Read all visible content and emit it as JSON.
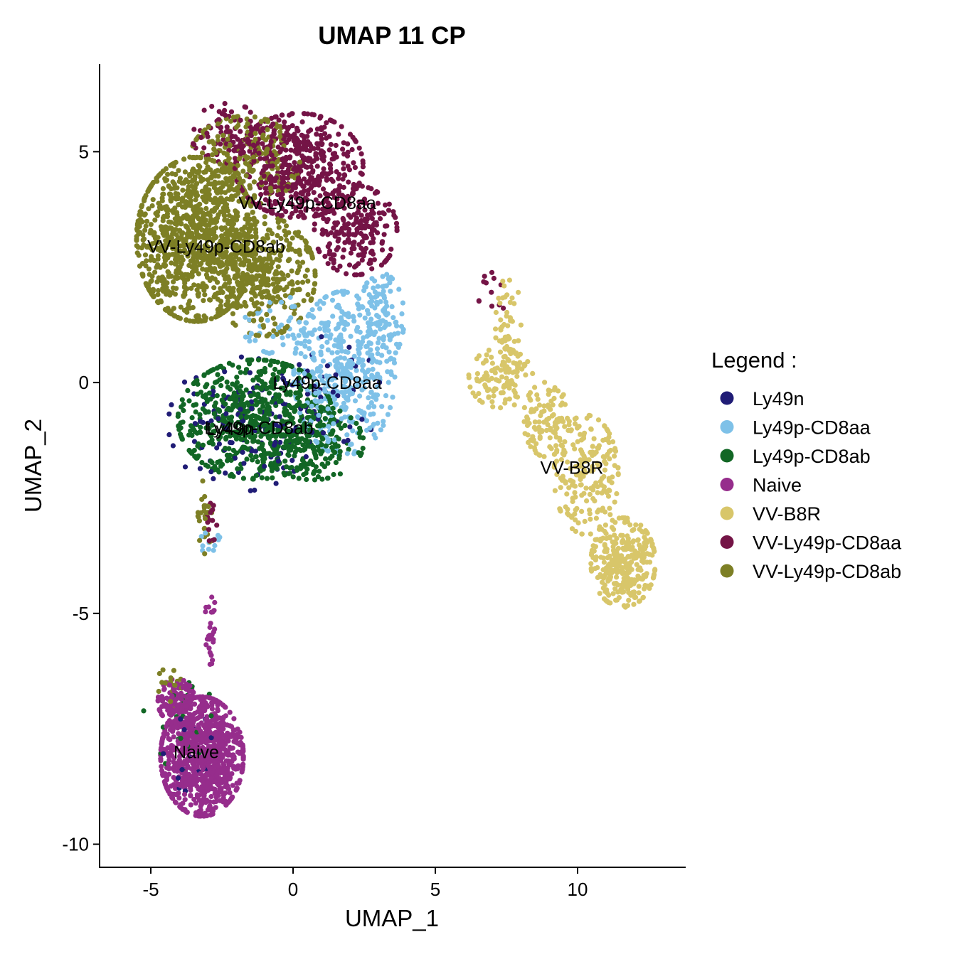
{
  "chart_data": {
    "type": "scatter",
    "title": "UMAP 11 CP",
    "xlabel": "UMAP_1",
    "ylabel": "UMAP_2",
    "xlim": [
      -6.8,
      13.8
    ],
    "ylim": [
      -10.5,
      6.9
    ],
    "xticks": [
      -5,
      0,
      5,
      10
    ],
    "yticks": [
      -10,
      -5,
      0,
      5
    ],
    "xtick_labels": [
      "-5",
      "0",
      "5",
      "10"
    ],
    "ytick_labels": [
      "-10",
      "-5",
      "0",
      "5"
    ],
    "grid": false,
    "legend_position": "right",
    "legend_title": "Legend :",
    "series": [
      {
        "name": "Ly49n",
        "color": "#201C76",
        "clusters": [
          {
            "cx": -1.8,
            "cy": -0.9,
            "sx": 1.6,
            "sy": 0.9,
            "n": 110
          },
          {
            "cx": 1.0,
            "cy": -0.3,
            "sx": 1.3,
            "sy": 0.8,
            "n": 50
          },
          {
            "cx": -3.6,
            "cy": -7.9,
            "sx": 0.6,
            "sy": 0.6,
            "n": 14
          }
        ]
      },
      {
        "name": "Ly49p-CD8aa",
        "color": "#7EC1E8",
        "clusters": [
          {
            "cx": 1.8,
            "cy": 0.2,
            "sx": 1.1,
            "sy": 1.1,
            "n": 380
          },
          {
            "cx": 3.1,
            "cy": 1.4,
            "sx": 0.5,
            "sy": 0.6,
            "n": 110
          },
          {
            "cx": 0.0,
            "cy": 1.2,
            "sx": 1.1,
            "sy": 0.4,
            "n": 60
          },
          {
            "cx": -2.9,
            "cy": -3.4,
            "sx": 0.2,
            "sy": 0.3,
            "n": 12
          }
        ]
      },
      {
        "name": "Ly49p-CD8ab",
        "color": "#126725",
        "clusters": [
          {
            "cx": -1.3,
            "cy": -0.8,
            "sx": 1.7,
            "sy": 0.8,
            "n": 620
          },
          {
            "cx": 0.7,
            "cy": -1.3,
            "sx": 1.1,
            "sy": 0.5,
            "n": 180
          },
          {
            "cx": -4.0,
            "cy": -7.4,
            "sx": 0.8,
            "sy": 0.7,
            "n": 28
          }
        ]
      },
      {
        "name": "Naive",
        "color": "#962D8C",
        "clusters": [
          {
            "cx": -3.2,
            "cy": -8.1,
            "sx": 0.9,
            "sy": 0.8,
            "n": 920
          },
          {
            "cx": -4.1,
            "cy": -6.9,
            "sx": 0.4,
            "sy": 0.3,
            "n": 120
          },
          {
            "cx": -2.9,
            "cy": -5.3,
            "sx": 0.12,
            "sy": 0.5,
            "n": 28
          }
        ]
      },
      {
        "name": "VV-B8R",
        "color": "#D8C66A",
        "clusters": [
          {
            "cx": 11.6,
            "cy": -3.9,
            "sx": 0.7,
            "sy": 0.6,
            "n": 320
          },
          {
            "cx": 10.3,
            "cy": -2.0,
            "sx": 0.7,
            "sy": 0.8,
            "n": 190
          },
          {
            "cx": 8.9,
            "cy": -0.8,
            "sx": 0.5,
            "sy": 0.5,
            "n": 110
          },
          {
            "cx": 7.3,
            "cy": 0.1,
            "sx": 0.7,
            "sy": 0.4,
            "n": 110
          },
          {
            "cx": 7.6,
            "cy": 1.2,
            "sx": 0.3,
            "sy": 0.7,
            "n": 55
          }
        ]
      },
      {
        "name": "VV-Ly49p-CD8aa",
        "color": "#741446",
        "clusters": [
          {
            "cx": 0.2,
            "cy": 4.7,
            "sx": 1.4,
            "sy": 0.7,
            "n": 520
          },
          {
            "cx": 2.2,
            "cy": 3.3,
            "sx": 0.9,
            "sy": 0.6,
            "n": 220
          },
          {
            "cx": -2.3,
            "cy": 5.4,
            "sx": 0.8,
            "sy": 0.4,
            "n": 80
          },
          {
            "cx": -2.9,
            "cy": -3.1,
            "sx": 0.15,
            "sy": 0.3,
            "n": 14
          },
          {
            "cx": 7.0,
            "cy": 1.9,
            "sx": 0.3,
            "sy": 0.3,
            "n": 12
          }
        ]
      },
      {
        "name": "VV-Ly49p-CD8ab",
        "color": "#7D7F25",
        "clusters": [
          {
            "cx": -3.4,
            "cy": 3.1,
            "sx": 1.3,
            "sy": 1.1,
            "n": 1050
          },
          {
            "cx": -1.0,
            "cy": 2.3,
            "sx": 1.1,
            "sy": 0.8,
            "n": 360
          },
          {
            "cx": -1.7,
            "cy": 4.8,
            "sx": 1.2,
            "sy": 0.6,
            "n": 220
          },
          {
            "cx": -3.1,
            "cy": -2.9,
            "sx": 0.15,
            "sy": 0.5,
            "n": 30
          },
          {
            "cx": -4.4,
            "cy": -6.6,
            "sx": 0.3,
            "sy": 0.3,
            "n": 18
          }
        ]
      }
    ],
    "annotations": [
      {
        "text": "VV-Ly49p-CD8aa",
        "x": 0.5,
        "y": 3.9
      },
      {
        "text": "VV-Ly49p-CD8ab",
        "x": -2.7,
        "y": 2.95
      },
      {
        "text": "Ly49p-CD8aa",
        "x": 1.2,
        "y": 0.0
      },
      {
        "text": "Ly49n",
        "x": -2.2,
        "y": -1.0
      },
      {
        "text": "Ly49p-CD8ab",
        "x": -1.2,
        "y": -0.98
      },
      {
        "text": "VV-B8R",
        "x": 9.8,
        "y": -1.84
      },
      {
        "text": "Naive",
        "x": -3.4,
        "y": -8.0
      }
    ]
  }
}
